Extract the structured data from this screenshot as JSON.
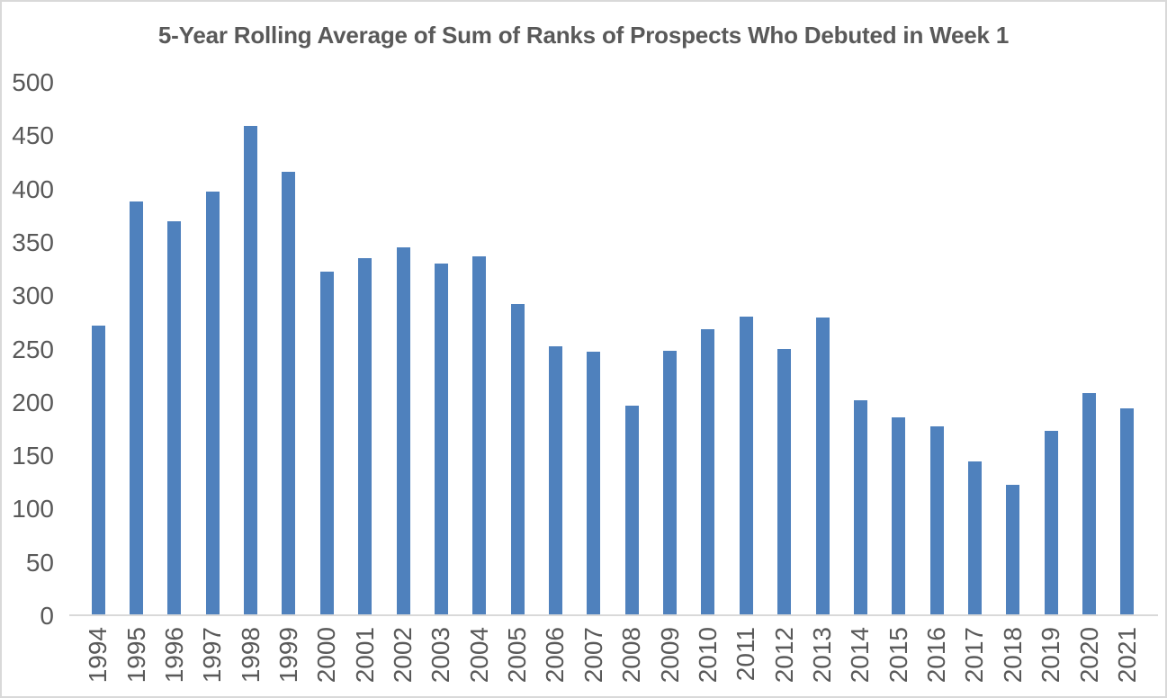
{
  "chart_data": {
    "type": "bar",
    "title": "5-Year Rolling Average of Sum of Ranks of Prospects Who Debuted in Week 1",
    "categories": [
      "1994",
      "1995",
      "1996",
      "1997",
      "1998",
      "1999",
      "2000",
      "2001",
      "2002",
      "2003",
      "2004",
      "2005",
      "2006",
      "2007",
      "2008",
      "2009",
      "2010",
      "2011",
      "2012",
      "2013",
      "2014",
      "2015",
      "2016",
      "2017",
      "2018",
      "2019",
      "2020",
      "2021"
    ],
    "values": [
      272,
      388,
      370,
      398,
      459,
      416,
      322,
      335,
      345,
      330,
      337,
      292,
      252,
      247,
      196,
      248,
      268,
      280,
      250,
      279,
      201,
      185,
      177,
      144,
      122,
      173,
      208,
      194
    ],
    "xlabel": "",
    "ylabel": "",
    "ylim": [
      0,
      500
    ],
    "yticks": [
      0,
      50,
      100,
      150,
      200,
      250,
      300,
      350,
      400,
      450,
      500
    ],
    "grid": false,
    "legend_position": "none",
    "x_tick_rotation_degrees": 90,
    "colors": {
      "bar_fill": "#4F81BD",
      "text": "#595959",
      "axis_line": "#D9D9D9",
      "background": "#FFFFFF",
      "chart_border": "#D9D9D9"
    }
  }
}
